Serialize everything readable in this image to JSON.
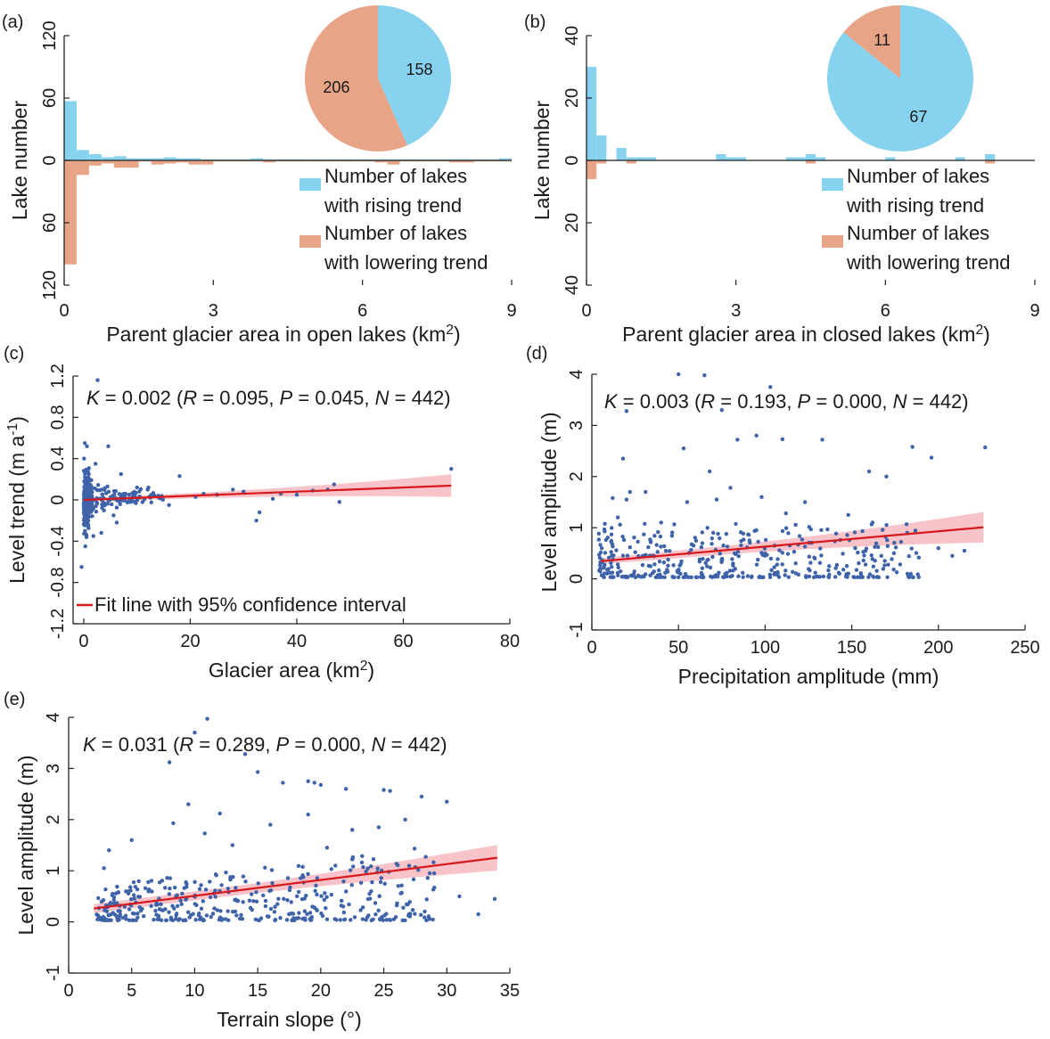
{
  "colors": {
    "rising": "#87d2ef",
    "lowering": "#e8a486",
    "scatter": "#3f63a8",
    "fit": "#d7191c",
    "band": "#f7b9c0"
  },
  "chart_data": [
    {
      "panel": "a",
      "label": "(a)",
      "type": "bar",
      "title": "",
      "xlabel": "Parent glacier area in open lakes (km",
      "xlabel_sup": "2",
      "xlabel_end": ")",
      "ylabel": "Lake number",
      "xlim": [
        0,
        9
      ],
      "ylim": [
        -120,
        120
      ],
      "xticks": [
        "0",
        "3",
        "6",
        "9"
      ],
      "yticks": [
        "120",
        "60",
        "0",
        "60",
        "120"
      ],
      "bin_width": 0.25,
      "series": [
        {
          "name": "Number of lakes with rising trend",
          "values": [
            57,
            10,
            6,
            3,
            4,
            2,
            2,
            2,
            3,
            2,
            2,
            1,
            1,
            1,
            1,
            2,
            1,
            1,
            1,
            1,
            1,
            1,
            1,
            1,
            1,
            1,
            1,
            1,
            1,
            1,
            1,
            1,
            1,
            1,
            1,
            2
          ]
        },
        {
          "name": "Number of lakes with lowering trend",
          "values": [
            -100,
            -14,
            -5,
            -3,
            -7,
            -7,
            -1,
            -4,
            -3,
            -2,
            -4,
            -4,
            -1,
            -1,
            -1,
            -1,
            -2,
            -1,
            -1,
            -1,
            -1,
            -1,
            -1,
            -1,
            -1,
            -2,
            -4,
            -1,
            -1,
            -1,
            -1,
            -2,
            -2,
            -1,
            -1,
            -1
          ]
        }
      ],
      "legend": [
        {
          "line1": "Number of lakes",
          "line2": "with rising trend"
        },
        {
          "line1": "Number of lakes",
          "line2": "with lowering trend"
        }
      ],
      "pie": [
        {
          "label": "158",
          "value": 158
        },
        {
          "label": "206",
          "value": 206
        }
      ]
    },
    {
      "panel": "b",
      "label": "(b)",
      "type": "bar",
      "title": "",
      "xlabel": "Parent glacier area in closed lakes (km",
      "xlabel_sup": "2",
      "xlabel_end": ")",
      "ylabel": "Lake number",
      "xlim": [
        0,
        9
      ],
      "ylim": [
        -40,
        40
      ],
      "xticks": [
        "0",
        "3",
        "6",
        "9"
      ],
      "yticks": [
        "40",
        "20",
        "0",
        "20",
        "40"
      ],
      "bin_width": 0.2,
      "series": [
        {
          "name": "Number of lakes with rising trend",
          "values": [
            30,
            8,
            0,
            4,
            1,
            1,
            1,
            0,
            0,
            0,
            0,
            0,
            0,
            2,
            1,
            1,
            0,
            0,
            0,
            0,
            1,
            1,
            2,
            1,
            0,
            0,
            0,
            0,
            0,
            0,
            1,
            0,
            0,
            0,
            0,
            0,
            0,
            1,
            0,
            0,
            2
          ]
        },
        {
          "name": "Number of lakes with lowering trend",
          "values": [
            -6,
            -1,
            0,
            0,
            -1,
            0,
            0,
            0,
            0,
            0,
            0,
            0,
            0,
            0,
            0,
            0,
            0,
            0,
            0,
            0,
            0,
            0,
            -1,
            0,
            0,
            0,
            0,
            0,
            0,
            0,
            0,
            0,
            0,
            0,
            0,
            0,
            0,
            0,
            0,
            0,
            -1
          ]
        }
      ],
      "legend": [
        {
          "line1": "Number of lakes",
          "line2": "with rising trend"
        },
        {
          "line1": "Number of lakes",
          "line2": "with lowering trend"
        }
      ],
      "pie": [
        {
          "label": "67",
          "value": 67
        },
        {
          "label": "11",
          "value": 11
        }
      ]
    },
    {
      "panel": "c",
      "label": "(c)",
      "type": "scatter",
      "title": "",
      "annotation": {
        "K": "0.002",
        "R": "0.095",
        "P": "0.045",
        "N": "442"
      },
      "xlabel": "Glacier area (km",
      "xlabel_sup": "2",
      "xlabel_end": ")",
      "ylabel": "Level trend (m a",
      "ylabel_sup": "-1",
      "ylabel_end": ")",
      "xlim": [
        -2,
        80
      ],
      "ylim": [
        -1.2,
        1.2
      ],
      "xticks": [
        0,
        20,
        40,
        60,
        80
      ],
      "yticks": [
        1.2,
        0.8,
        0.4,
        0,
        -0.4,
        -0.8,
        -1.2
      ],
      "ytick_labels": [
        "1.2",
        "0.8",
        "0.4",
        "0",
        "-0.4",
        "-0.8",
        "-1.2"
      ],
      "legend": "Fit line with 95% confidence interval",
      "fit": {
        "x0": 0,
        "x1": 69,
        "slope": 0.002,
        "intercept": 0.0
      },
      "band": {
        "half_width_start": 0.02,
        "half_width_end": 0.11
      },
      "points": {
        "n": 442,
        "highlight": [
          [
            0.2,
            0.55
          ],
          [
            0.6,
            0.52
          ],
          [
            4.6,
            0.52
          ],
          [
            2.6,
            1.16
          ],
          [
            69,
            0.3
          ],
          [
            33,
            -0.12
          ],
          [
            32.4,
            -0.2
          ],
          [
            35.5,
            0.01
          ],
          [
            40,
            0.05
          ],
          [
            47,
            0.15
          ],
          [
            45.8,
            0.1
          ],
          [
            48,
            -0.02
          ],
          [
            28,
            0.1
          ],
          [
            25,
            0.05
          ],
          [
            21,
            0.03
          ],
          [
            18,
            0.23
          ],
          [
            14,
            0.04
          ],
          [
            16,
            -0.05
          ],
          [
            22.5,
            0.06
          ],
          [
            30,
            0.08
          ],
          [
            37,
            0.06
          ],
          [
            43,
            0.09
          ],
          [
            -0.4,
            -0.65
          ],
          [
            0.3,
            -0.45
          ],
          [
            1.8,
            -0.35
          ],
          [
            3.3,
            -0.32
          ],
          [
            6.2,
            -0.22
          ],
          [
            2.2,
            0.35
          ],
          [
            7,
            0.25
          ],
          [
            10,
            0.12
          ],
          [
            12,
            0.1
          ],
          [
            5.6,
            -0.15
          ],
          [
            8.5,
            0.05
          ]
        ]
      }
    },
    {
      "panel": "d",
      "label": "(d)",
      "type": "scatter",
      "title": "",
      "annotation": {
        "K": "0.003",
        "R": "0.193",
        "P": "0.000",
        "N": "442"
      },
      "xlabel": "Precipitation amplitude (mm)",
      "ylabel": "Level amplitude (m)",
      "xlim": [
        0,
        250
      ],
      "ylim": [
        -1,
        4
      ],
      "xticks": [
        0,
        50,
        100,
        150,
        200,
        250
      ],
      "yticks": [
        4,
        3,
        2,
        1,
        0,
        -1
      ],
      "ytick_labels": [
        "4",
        "3",
        "2",
        "1",
        "0",
        "-1"
      ],
      "fit": {
        "x0": 5,
        "x1": 226,
        "slope": 0.003,
        "intercept": 0.33
      },
      "band": {
        "half_width_start": 0.08,
        "half_width_end": 0.3
      },
      "points": {
        "n": 442,
        "highlight": [
          [
            50,
            4.0
          ],
          [
            65,
            3.98
          ],
          [
            103,
            3.75
          ],
          [
            75,
            3.3
          ],
          [
            20,
            3.28
          ],
          [
            18,
            2.35
          ],
          [
            53,
            2.55
          ],
          [
            68,
            2.1
          ],
          [
            84,
            2.72
          ],
          [
            95,
            2.8
          ],
          [
            110,
            2.73
          ],
          [
            133,
            2.72
          ],
          [
            185,
            2.58
          ],
          [
            227,
            2.57
          ],
          [
            160,
            2.1
          ],
          [
            170,
            2.0
          ],
          [
            196,
            2.37
          ],
          [
            12,
            1.58
          ],
          [
            20,
            1.55
          ],
          [
            31,
            1.7
          ],
          [
            22,
            1.7
          ],
          [
            15,
            1.2
          ],
          [
            40,
            1.1
          ],
          [
            55,
            1.5
          ],
          [
            72,
            1.55
          ],
          [
            80,
            1.78
          ],
          [
            98,
            1.6
          ],
          [
            112,
            1.28
          ],
          [
            123,
            1.5
          ],
          [
            148,
            1.25
          ],
          [
            162,
            1.1
          ],
          [
            182,
            0.9
          ],
          [
            200,
            0.6
          ],
          [
            215,
            0.55
          ],
          [
            208,
            0.45
          ]
        ]
      }
    },
    {
      "panel": "e",
      "label": "(e)",
      "type": "scatter",
      "title": "",
      "annotation": {
        "K": "0.031",
        "R": "0.289",
        "P": "0.000",
        "N": "442"
      },
      "xlabel": "Terrain slope (°)",
      "ylabel": "Level amplitude (m)",
      "xlim": [
        0,
        35
      ],
      "ylim": [
        -1,
        4
      ],
      "xticks": [
        0,
        5,
        10,
        15,
        20,
        25,
        30,
        35
      ],
      "yticks": [
        4,
        3,
        2,
        1,
        0,
        -1
      ],
      "ytick_labels": [
        "4",
        "3",
        "2",
        "1",
        "0",
        "-1"
      ],
      "fit": {
        "x0": 2,
        "x1": 34,
        "slope": 0.031,
        "intercept": 0.2
      },
      "band": {
        "half_width_start": 0.12,
        "half_width_end": 0.25
      },
      "points": {
        "n": 442,
        "highlight": [
          [
            10,
            3.7
          ],
          [
            11,
            3.97
          ],
          [
            14,
            3.28
          ],
          [
            8,
            3.12
          ],
          [
            15,
            2.93
          ],
          [
            17,
            2.72
          ],
          [
            19,
            2.75
          ],
          [
            19.5,
            2.72
          ],
          [
            20,
            2.68
          ],
          [
            22,
            2.6
          ],
          [
            25,
            2.58
          ],
          [
            25.5,
            2.56
          ],
          [
            28,
            2.45
          ],
          [
            30,
            2.35
          ],
          [
            9.5,
            2.3
          ],
          [
            12,
            2.12
          ],
          [
            24.6,
            1.85
          ],
          [
            26.7,
            2.0
          ],
          [
            19,
            2.1
          ],
          [
            22.5,
            1.8
          ],
          [
            8.3,
            1.93
          ],
          [
            10.8,
            1.73
          ],
          [
            5,
            1.6
          ],
          [
            3.2,
            1.4
          ],
          [
            16,
            1.9
          ],
          [
            13,
            1.5
          ],
          [
            20.5,
            1.45
          ],
          [
            29,
            0.95
          ],
          [
            32.5,
            0.15
          ],
          [
            33.8,
            0.45
          ],
          [
            31,
            0.5
          ],
          [
            27,
            0.15
          ],
          [
            24,
            0.6
          ],
          [
            2.8,
            1.05
          ]
        ]
      }
    }
  ]
}
